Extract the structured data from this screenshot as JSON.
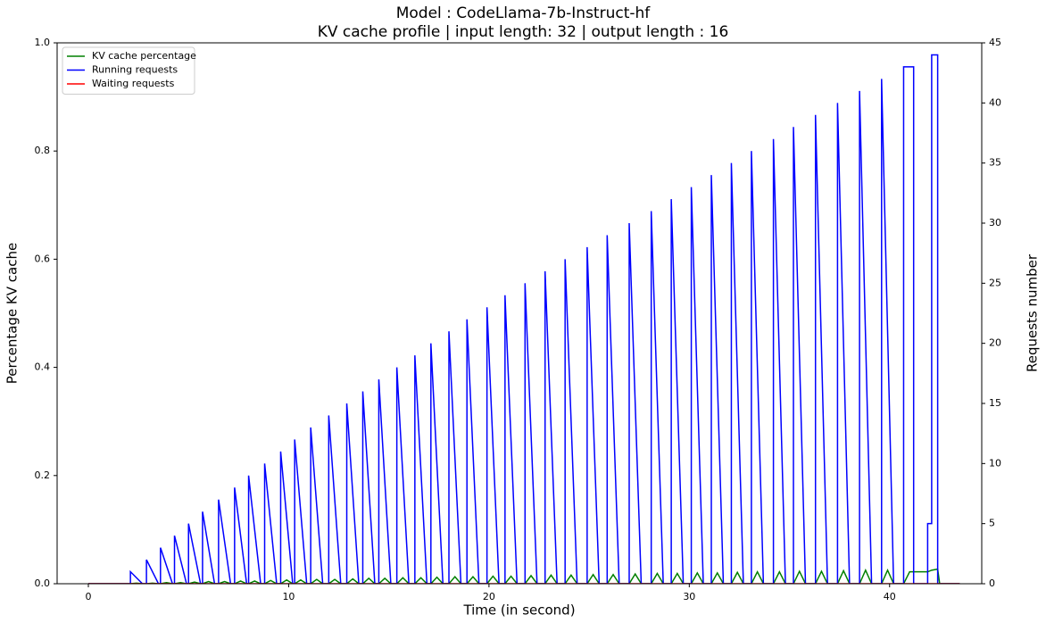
{
  "chart_data": {
    "type": "line",
    "title": "Model : CodeLlama-7b-Instruct-hf",
    "subtitle": "KV cache profile | input length: 32 | output length : 16",
    "x_label": "Time (in second)",
    "y_label": "Percentage KV cache",
    "y2_label": "Requests number",
    "xlim": [
      -1.56,
      44.6
    ],
    "xticks": [
      0,
      10,
      20,
      30,
      40
    ],
    "ylim": [
      0,
      1
    ],
    "yticks": [
      {
        "value": 0,
        "label": "0.0"
      },
      {
        "value": 0.2,
        "label": "0.2"
      },
      {
        "value": 0.4,
        "label": "0.4"
      },
      {
        "value": 0.6,
        "label": "0.6"
      },
      {
        "value": 0.8,
        "label": "0.8"
      },
      {
        "value": 1,
        "label": "1.0"
      }
    ],
    "y2lim": [
      0,
      45
    ],
    "y2ticks": [
      0,
      5,
      10,
      15,
      20,
      25,
      30,
      35,
      40,
      45
    ],
    "legend": "upper left",
    "series": [
      {
        "name": "KV cache percentage",
        "color": "#008000",
        "axis": "y",
        "x": [
          0,
          2.1,
          2.4,
          2.7,
          2.9,
          3.2,
          3.5,
          3.6,
          3.9,
          4.2,
          4.3,
          4.6,
          4.9,
          5.0,
          5.3,
          5.6,
          5.7,
          6.0,
          6.3,
          6.5,
          6.8,
          7.1,
          7.3,
          7.6,
          7.9,
          8.0,
          8.3,
          8.6,
          8.8,
          9.1,
          9.4,
          9.6,
          9.9,
          10.2,
          10.3,
          10.6,
          10.9,
          11.1,
          11.4,
          11.7,
          12.0,
          12.3,
          12.6,
          12.9,
          13.2,
          13.5,
          13.7,
          14.0,
          14.3,
          14.5,
          14.8,
          15.1,
          15.4,
          15.7,
          16.0,
          16.3,
          16.6,
          16.9,
          17.1,
          17.4,
          17.7,
          18.0,
          18.3,
          18.6,
          18.9,
          19.2,
          19.5,
          19.9,
          20.2,
          20.5,
          20.8,
          21.1,
          21.4,
          21.8,
          22.1,
          22.4,
          22.8,
          23.1,
          23.4,
          23.8,
          24.1,
          24.4,
          24.9,
          25.2,
          25.5,
          25.9,
          26.2,
          26.5,
          27.0,
          27.3,
          27.6,
          28.1,
          28.4,
          28.7,
          29.1,
          29.4,
          29.7,
          30.1,
          30.4,
          30.7,
          31.1,
          31.4,
          31.7,
          32.1,
          32.4,
          32.7,
          33.1,
          33.4,
          33.7,
          34.2,
          34.5,
          34.8,
          35.2,
          35.5,
          35.8,
          36.3,
          36.6,
          36.9,
          37.4,
          37.7,
          38.0,
          38.5,
          38.8,
          39.1,
          39.6,
          39.9,
          40.2,
          40.7,
          41.0,
          41.9,
          42.1,
          42.4,
          42.5,
          43.5
        ],
        "values": [
          0,
          0,
          0.001,
          0,
          0,
          0.001,
          0,
          0,
          0.002,
          0,
          0,
          0.002,
          0,
          0,
          0.003,
          0,
          0,
          0.004,
          0,
          0,
          0.004,
          0,
          0,
          0.005,
          0,
          0,
          0.005,
          0,
          0,
          0.006,
          0,
          0,
          0.007,
          0,
          0,
          0.007,
          0,
          0,
          0.008,
          0,
          0,
          0.008,
          0,
          0,
          0.009,
          0,
          0,
          0.01,
          0,
          0,
          0.01,
          0,
          0,
          0.011,
          0,
          0,
          0.011,
          0,
          0,
          0.012,
          0,
          0,
          0.013,
          0,
          0,
          0.013,
          0,
          0,
          0.014,
          0,
          0,
          0.014,
          0,
          0,
          0.015,
          0,
          0,
          0.016,
          0,
          0,
          0.016,
          0,
          0,
          0.017,
          0,
          0,
          0.017,
          0,
          0,
          0.018,
          0,
          0,
          0.019,
          0,
          0,
          0.019,
          0,
          0,
          0.02,
          0,
          0,
          0.02,
          0,
          0,
          0.021,
          0,
          0,
          0.022,
          0,
          0,
          0.022,
          0,
          0,
          0.023,
          0,
          0,
          0.023,
          0,
          0,
          0.024,
          0,
          0,
          0.025,
          0,
          0,
          0.025,
          0,
          0,
          0.022,
          0.022,
          0.025,
          0.027,
          0,
          0
        ]
      },
      {
        "name": "Running requests",
        "color": "#0000ff",
        "axis": "y2",
        "x": [
          0,
          2.1,
          2.1,
          2.7,
          2.9,
          2.9,
          3.5,
          3.6,
          3.6,
          4.2,
          4.3,
          4.3,
          4.9,
          5.0,
          5.0,
          5.6,
          5.7,
          5.7,
          6.3,
          6.5,
          6.5,
          7.1,
          7.3,
          7.3,
          7.9,
          8.0,
          8.0,
          8.6,
          8.8,
          8.8,
          9.4,
          9.6,
          9.6,
          10.2,
          10.3,
          10.3,
          10.9,
          11.1,
          11.1,
          11.7,
          12.0,
          12.0,
          12.6,
          12.9,
          12.9,
          13.5,
          13.7,
          13.7,
          14.3,
          14.5,
          14.5,
          15.1,
          15.4,
          15.4,
          16.0,
          16.3,
          16.3,
          16.9,
          17.1,
          17.1,
          17.7,
          18.0,
          18.0,
          18.6,
          18.9,
          18.9,
          19.5,
          19.9,
          19.9,
          20.5,
          20.8,
          20.8,
          21.4,
          21.8,
          21.8,
          22.4,
          22.8,
          22.8,
          23.4,
          23.8,
          23.8,
          24.4,
          24.9,
          24.9,
          25.5,
          25.9,
          25.9,
          26.5,
          27.0,
          27.0,
          27.6,
          28.1,
          28.1,
          28.7,
          29.1,
          29.1,
          29.7,
          30.1,
          30.1,
          30.7,
          31.1,
          31.1,
          31.7,
          32.1,
          32.1,
          32.7,
          33.1,
          33.1,
          33.7,
          34.2,
          34.2,
          34.8,
          35.2,
          35.2,
          35.8,
          36.3,
          36.3,
          36.9,
          37.4,
          37.4,
          38.0,
          38.5,
          38.5,
          39.1,
          39.6,
          39.6,
          40.2,
          40.7,
          40.7,
          41.2,
          41.2,
          41.9,
          41.9,
          42.1,
          42.1,
          42.4,
          42.4,
          43.5
        ],
        "values": [
          0,
          0,
          1,
          0,
          0,
          2,
          0,
          0,
          3,
          0,
          0,
          4,
          0,
          0,
          5,
          0,
          0,
          6,
          0,
          0,
          7,
          0,
          0,
          8,
          0,
          0,
          9,
          0,
          0,
          10,
          0,
          0,
          11,
          0,
          0,
          12,
          0,
          0,
          13,
          0,
          0,
          14,
          0,
          0,
          15,
          0,
          0,
          16,
          0,
          0,
          17,
          0,
          0,
          18,
          0,
          0,
          19,
          0,
          0,
          20,
          0,
          0,
          21,
          0,
          0,
          22,
          0,
          0,
          23,
          0,
          0,
          24,
          0,
          0,
          25,
          0,
          0,
          26,
          0,
          0,
          27,
          0,
          0,
          28,
          0,
          0,
          29,
          0,
          0,
          30,
          0,
          0,
          31,
          0,
          0,
          32,
          0,
          0,
          33,
          0,
          0,
          34,
          0,
          0,
          35,
          0,
          0,
          36,
          0,
          0,
          37,
          0,
          0,
          38,
          0,
          0,
          39,
          0,
          0,
          40,
          0,
          0,
          41,
          0,
          0,
          42,
          0,
          0,
          43,
          43,
          0,
          0,
          5,
          5,
          44,
          44,
          0,
          0
        ]
      },
      {
        "name": "Waiting requests",
        "color": "#ff0000",
        "axis": "y2",
        "x": [
          0,
          43.5
        ],
        "values": [
          0,
          0
        ]
      }
    ]
  }
}
